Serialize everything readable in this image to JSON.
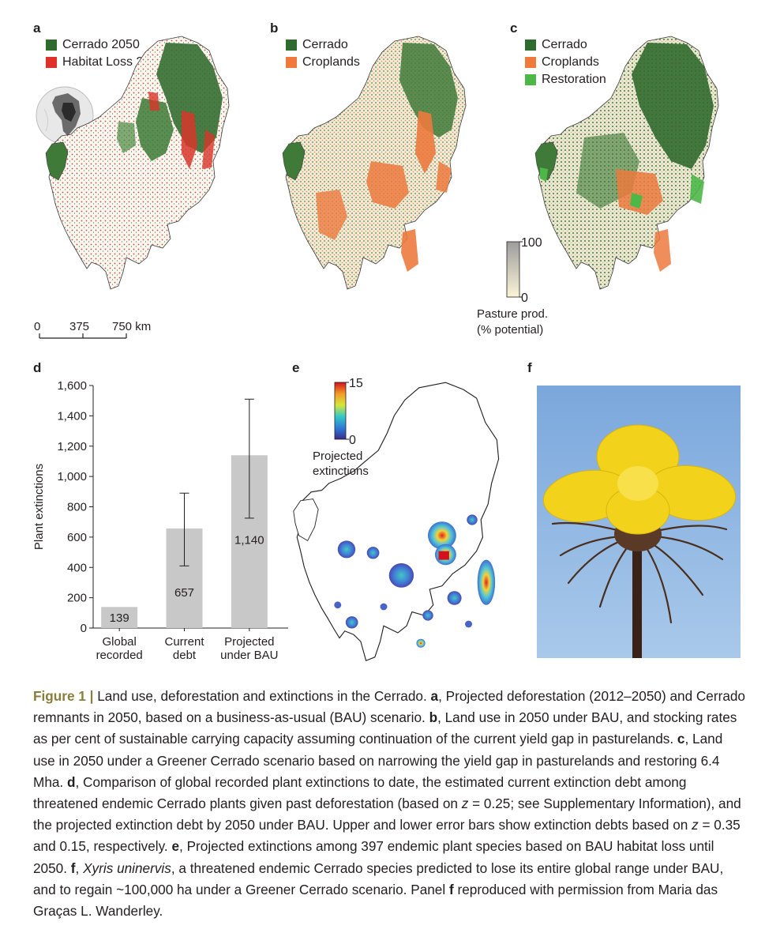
{
  "panels": {
    "a": {
      "letter": "a",
      "legend": [
        {
          "label": "Cerrado 2050",
          "color": "#2e6b2e"
        },
        {
          "label": "Habitat Loss 2012–2050",
          "color": "#e0302a"
        }
      ],
      "scale_ticks": [
        "0",
        "375",
        "750 km"
      ]
    },
    "b": {
      "letter": "b",
      "legend": [
        {
          "label": "Cerrado",
          "color": "#2e6b2e"
        },
        {
          "label": "Croplands",
          "color": "#f07a3c"
        }
      ]
    },
    "c": {
      "letter": "c",
      "legend": [
        {
          "label": "Cerrado",
          "color": "#2e6b2e"
        },
        {
          "label": "Croplands",
          "color": "#f07a3c"
        },
        {
          "label": "Restoration",
          "color": "#4db848"
        }
      ],
      "colorbar": {
        "max": "100",
        "min": "0",
        "label_line1": "Pasture prod.",
        "label_line2": "(% potential)"
      }
    },
    "e": {
      "letter": "e",
      "colorbar": {
        "max": "15",
        "min": "0",
        "label_line1": "Projected",
        "label_line2": "extinctions"
      }
    },
    "f": {
      "letter": "f"
    }
  },
  "chart_data": {
    "panel": "d",
    "type": "bar",
    "ylabel": "Plant extinctions",
    "ylim": [
      0,
      1600
    ],
    "yticks": [
      0,
      200,
      400,
      600,
      800,
      1000,
      1200,
      1400,
      1600
    ],
    "ytick_labels": [
      "0",
      "200",
      "400",
      "600",
      "800",
      "1,000",
      "1,200",
      "1,400",
      "1,600"
    ],
    "categories": [
      {
        "line1": "Global",
        "line2": "recorded"
      },
      {
        "line1": "Current",
        "line2": "debt"
      },
      {
        "line1": "Projected",
        "line2": "under BAU"
      }
    ],
    "values": [
      139,
      657,
      1140
    ],
    "value_labels": [
      "139",
      "657",
      "1,140"
    ],
    "error_upper": [
      null,
      890,
      1510
    ],
    "error_lower": [
      null,
      410,
      725
    ],
    "bar_color": "#c8c8c8"
  },
  "caption": {
    "figure_label": "Figure 1 |",
    "s1": " Land use, deforestation and extinctions in the Cerrado. ",
    "a": "a",
    "s2": ", Projected deforestation (2012–2050) and Cerrado remnants in 2050, based on a business-as-usual (BAU) scenario. ",
    "b": "b",
    "s3": ", Land use in 2050 under BAU, and stocking rates as per cent of sustainable carrying capacity assuming continuation of the current yield gap in pasturelands. ",
    "c": "c",
    "s4": ", Land use in 2050 under a Greener Cerrado scenario based on narrowing the yield gap in pasturelands and restoring 6.4 Mha. ",
    "d": "d",
    "s5": ", Comparison of global recorded plant extinctions to date, the estimated current extinction debt among threatened endemic Cerrado plants given past deforestation (based on ",
    "z1": "z",
    "s6": " = 0.25; see Supplementary Information), and the projected extinction debt by 2050 under BAU. Upper and lower error bars show extinction debts based on ",
    "z2": "z",
    "s7": " = 0.35 and 0.15, respectively. ",
    "e": "e",
    "s8": ", Projected extinctions among 397 endemic plant species based on BAU habitat loss until 2050. ",
    "f": "f",
    "s9": ", ",
    "species": "Xyris uninervis",
    "s10": ", a threatened endemic Cerrado species predicted to lose its entire global range under BAU, and to regain ~100,000 ha under a Greener Cerrado scenario. Panel ",
    "f2": "f",
    "s11": " reproduced with permission from Maria das Graças L. Wanderley."
  }
}
